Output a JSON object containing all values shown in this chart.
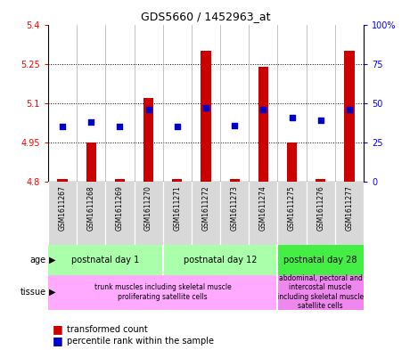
{
  "title": "GDS5660 / 1452963_at",
  "samples": [
    "GSM1611267",
    "GSM1611268",
    "GSM1611269",
    "GSM1611270",
    "GSM1611271",
    "GSM1611272",
    "GSM1611273",
    "GSM1611274",
    "GSM1611275",
    "GSM1611276",
    "GSM1611277"
  ],
  "transformed_count": [
    4.81,
    4.95,
    4.81,
    5.12,
    4.81,
    5.3,
    4.81,
    5.24,
    4.95,
    4.81,
    5.3
  ],
  "percentile_rank": [
    35,
    38,
    35,
    46,
    35,
    47,
    36,
    46,
    41,
    39,
    46
  ],
  "ylim_left": [
    4.8,
    5.4
  ],
  "ylim_right": [
    0,
    100
  ],
  "yticks_left": [
    4.8,
    4.95,
    5.1,
    5.25,
    5.4
  ],
  "yticks_left_labels": [
    "4.8",
    "4.95",
    "5.1",
    "5.25",
    "5.4"
  ],
  "yticks_right": [
    0,
    25,
    50,
    75,
    100
  ],
  "yticks_right_labels": [
    "0",
    "25",
    "50",
    "75",
    "100%"
  ],
  "bar_color": "#cc0000",
  "dot_color": "#0000cc",
  "age_groups": [
    {
      "label": "postnatal day 1",
      "start": 0,
      "end": 4,
      "color": "#aaffaa"
    },
    {
      "label": "postnatal day 12",
      "start": 4,
      "end": 8,
      "color": "#aaffaa"
    },
    {
      "label": "postnatal day 28",
      "start": 8,
      "end": 11,
      "color": "#44ee44"
    }
  ],
  "tissue_groups": [
    {
      "label": "trunk muscles including skeletal muscle\nproliferating satellite cells",
      "start": 0,
      "end": 8,
      "color": "#ffaaff"
    },
    {
      "label": "abdominal, pectoral and\nintercostal muscle\nincluding skeletal muscle\nsatellite cells",
      "start": 8,
      "end": 11,
      "color": "#ee88ee"
    }
  ],
  "legend_red_label": "transformed count",
  "legend_blue_label": "percentile rank within the sample",
  "bar_bottom": 4.8,
  "bar_width": 0.35
}
